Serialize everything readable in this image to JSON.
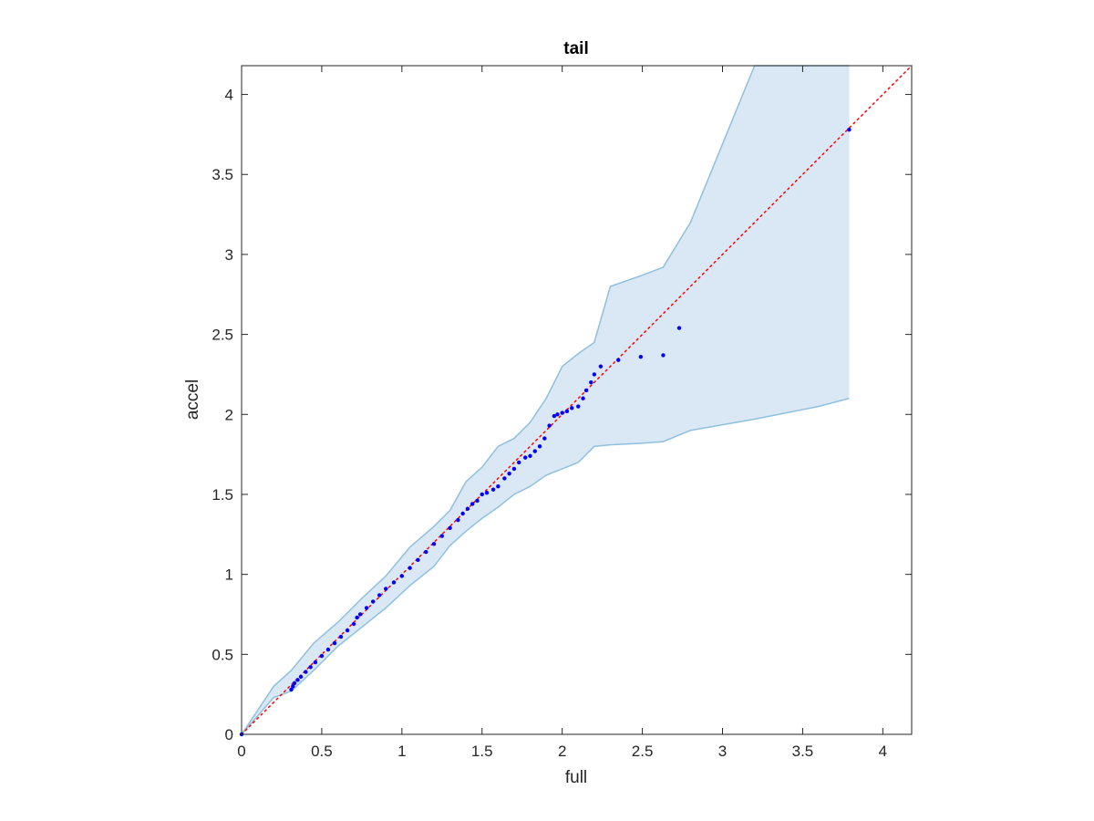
{
  "chart_data": {
    "type": "scatter",
    "title": "tail",
    "xlabel": "full",
    "ylabel": "accel",
    "xlim": [
      0,
      4.18
    ],
    "ylim": [
      0,
      4.18
    ],
    "xticks": [
      "0",
      "0.5",
      "1",
      "1.5",
      "2",
      "2.5",
      "3",
      "3.5",
      "4"
    ],
    "yticks": [
      "0",
      "0.5",
      "1",
      "1.5",
      "2",
      "2.5",
      "3",
      "3.5",
      "4"
    ],
    "grid": false,
    "legend": "none",
    "reference_line": {
      "style": "dotted",
      "color": "#ff0000",
      "from": [
        0,
        0
      ],
      "to": [
        4.18,
        4.18
      ]
    },
    "confidence_band": {
      "fill": "#d9e8f4",
      "edge": "#8fc0de",
      "x": [
        0,
        0.2,
        0.31,
        0.45,
        0.6,
        0.75,
        0.9,
        1.05,
        1.2,
        1.3,
        1.4,
        1.5,
        1.6,
        1.7,
        1.8,
        1.9,
        2.0,
        2.1,
        2.2,
        2.3,
        2.5,
        2.63,
        2.8,
        3.2,
        3.6,
        3.79
      ],
      "upper": [
        0,
        0.3,
        0.4,
        0.57,
        0.7,
        0.85,
        0.99,
        1.17,
        1.3,
        1.4,
        1.58,
        1.67,
        1.8,
        1.85,
        1.95,
        2.1,
        2.3,
        2.38,
        2.45,
        2.8,
        2.87,
        2.92,
        3.2,
        4.2,
        4.2,
        4.2
      ],
      "lower": [
        0,
        0.23,
        0.27,
        0.4,
        0.55,
        0.67,
        0.79,
        0.93,
        1.05,
        1.18,
        1.27,
        1.35,
        1.42,
        1.5,
        1.55,
        1.62,
        1.66,
        1.7,
        1.8,
        1.81,
        1.82,
        1.83,
        1.9,
        1.97,
        2.05,
        2.1
      ]
    },
    "series": [
      {
        "color": "#0000ff",
        "x": [
          0,
          0.31,
          0.32,
          0.33,
          0.35,
          0.37,
          0.4,
          0.43,
          0.46,
          0.5,
          0.54,
          0.58,
          0.62,
          0.66,
          0.7,
          0.72,
          0.74,
          0.78,
          0.82,
          0.86,
          0.9,
          0.95,
          1.0,
          1.05,
          1.1,
          1.15,
          1.2,
          1.25,
          1.3,
          1.35,
          1.38,
          1.41,
          1.44,
          1.47,
          1.5,
          1.53,
          1.57,
          1.6,
          1.64,
          1.67,
          1.7,
          1.73,
          1.77,
          1.8,
          1.83,
          1.86,
          1.89,
          1.92,
          1.95,
          1.97,
          2.0,
          2.03,
          2.06,
          2.1,
          2.13,
          2.15,
          2.18,
          2.2,
          2.24,
          2.35,
          2.49,
          2.63,
          2.73,
          3.79
        ],
        "y": [
          0,
          0.28,
          0.3,
          0.32,
          0.34,
          0.36,
          0.39,
          0.42,
          0.45,
          0.49,
          0.53,
          0.57,
          0.61,
          0.65,
          0.69,
          0.73,
          0.75,
          0.79,
          0.83,
          0.87,
          0.91,
          0.95,
          0.99,
          1.04,
          1.09,
          1.14,
          1.19,
          1.24,
          1.29,
          1.34,
          1.38,
          1.41,
          1.44,
          1.46,
          1.5,
          1.51,
          1.53,
          1.55,
          1.6,
          1.63,
          1.66,
          1.7,
          1.73,
          1.74,
          1.77,
          1.8,
          1.85,
          1.93,
          1.99,
          2.0,
          2.01,
          2.02,
          2.04,
          2.05,
          2.1,
          2.15,
          2.2,
          2.25,
          2.3,
          2.34,
          2.36,
          2.37,
          2.54,
          3.78
        ]
      }
    ]
  }
}
